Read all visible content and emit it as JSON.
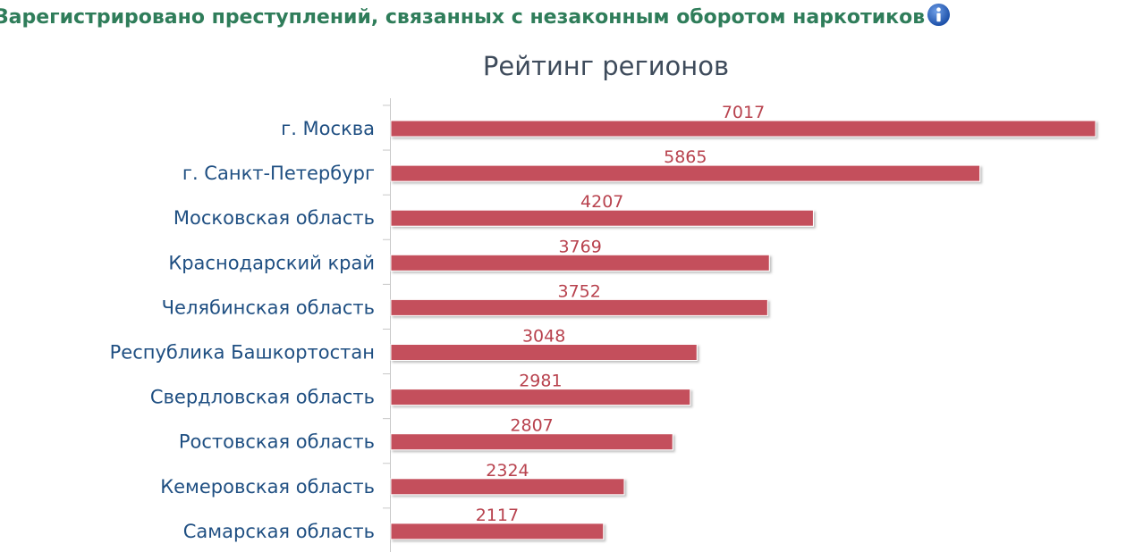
{
  "header": {
    "title": "Зарегистрировано преступлений, связанных с незаконным оборотом наркотиков",
    "info_icon": "info-icon"
  },
  "colors": {
    "header_text": "#2f7d5a",
    "bar": "#c4505c",
    "value_label": "#b8424e",
    "category_label": "#1f4f82",
    "title": "#3e4b5b",
    "axis": "#c8c8c8",
    "info_icon": "#1f5fb4"
  },
  "chart_data": {
    "type": "bar",
    "orientation": "horizontal",
    "title": "Рейтинг регионов",
    "xlabel": "",
    "ylabel": "",
    "categories": [
      "г. Москва",
      "г. Санкт-Петербург",
      "Московская область",
      "Краснодарский край",
      "Челябинская область",
      "Республика Башкортостан",
      "Свердловская область",
      "Ростовская область",
      "Кемеровская область",
      "Самарская область"
    ],
    "values": [
      7017,
      5865,
      4207,
      3769,
      3752,
      3048,
      2981,
      2807,
      2324,
      2117
    ],
    "xlim": [
      0,
      7017
    ],
    "grid": false,
    "legend": "none",
    "data_labels": true
  }
}
